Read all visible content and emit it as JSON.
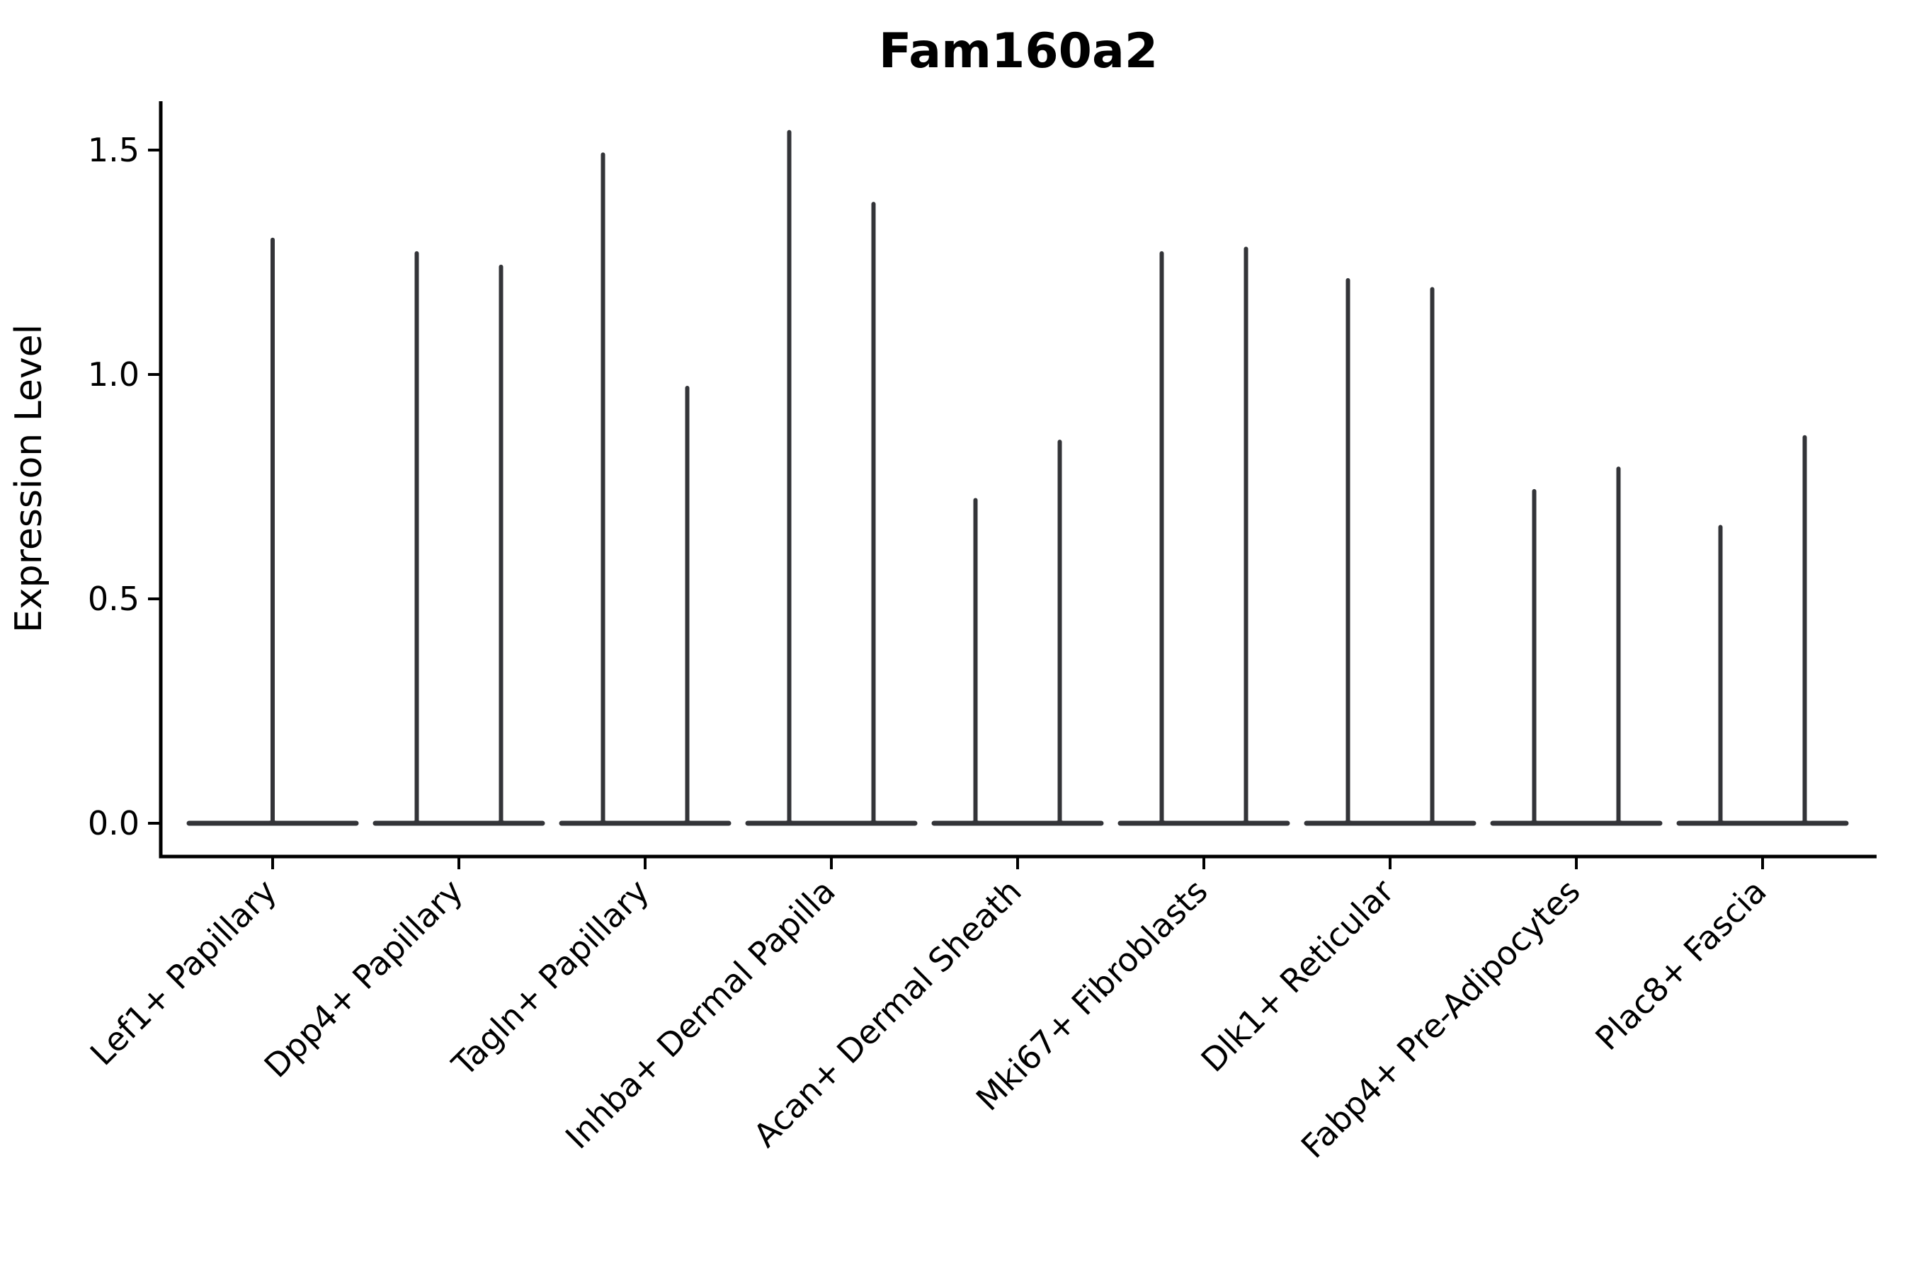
{
  "chart_data": {
    "type": "violin",
    "title": "Fam160a2",
    "ylabel": "Expression Level",
    "xlabel": "",
    "background": "#ffffff",
    "axis_color": "#000000",
    "violin_color": "#333438",
    "grid": false,
    "legend": "none",
    "ylim": [
      -0.07,
      1.61
    ],
    "yticks": [
      0.0,
      0.5,
      1.0,
      1.5
    ],
    "ytick_labels": [
      "0.0",
      "0.5",
      "1.0",
      "1.5"
    ],
    "categories": [
      "Lef1+ Papillary",
      "Dpp4+ Papillary",
      "Tagln+ Papillary",
      "Inhba+ Dermal Papilla",
      "Acan+ Dermal Sheath",
      "Mki67+ Fibroblasts",
      "Dlk1+ Reticular",
      "Fabp4+ Pre-Adipocytes",
      "Plac8+ Fascia"
    ],
    "baseline_value": 0.0,
    "violin_description": "Each category shows extremely thin violins: a flat density base at expression 0 with narrow spikes reaching the maximum expression value. Lef1+ Papillary has a single centered spike; all other categories have two spikes.",
    "violin_max_values": [
      [
        1.3
      ],
      [
        1.27,
        1.24
      ],
      [
        1.49,
        0.97
      ],
      [
        1.54,
        1.38
      ],
      [
        0.72,
        0.85
      ],
      [
        1.27,
        1.28
      ],
      [
        1.21,
        1.19
      ],
      [
        0.74,
        0.79
      ],
      [
        0.66,
        0.86
      ]
    ]
  }
}
